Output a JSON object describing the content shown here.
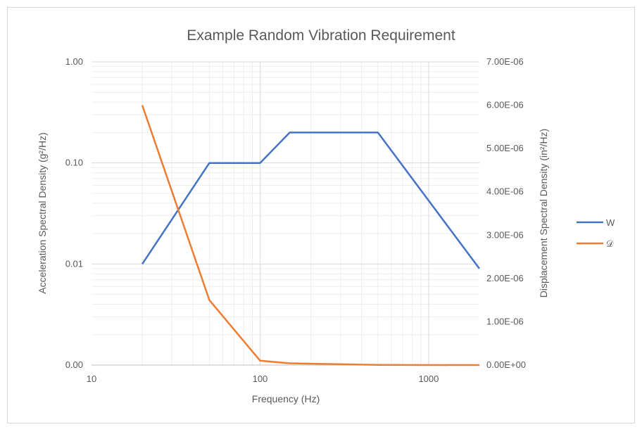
{
  "chart_data": {
    "type": "line",
    "title": "Example Random Vibration Requirement",
    "xlabel": "Frequency (Hz)",
    "ylabel_left": "Acceleration Spectral Density (g²/Hz)",
    "ylabel_right": "Displacement Spectral Density (in²/Hz)",
    "x_scale": "log",
    "xlim": [
      10,
      2000
    ],
    "x_ticks": [
      10,
      100,
      1000
    ],
    "x_tick_labels": [
      "10",
      "100",
      "1000"
    ],
    "y_left_scale": "log",
    "y_left_lim": [
      0.001,
      1
    ],
    "y_left_ticks": [
      0.001,
      0.01,
      0.1,
      1
    ],
    "y_left_tick_labels": [
      "0.00",
      "0.01",
      "0.10",
      "1.00"
    ],
    "y_right_scale": "linear",
    "y_right_lim": [
      0,
      7e-06
    ],
    "y_right_ticks": [
      0,
      1e-06,
      2e-06,
      3e-06,
      4e-06,
      5e-06,
      6e-06,
      7e-06
    ],
    "y_right_tick_labels": [
      "0.00E+00",
      "1.00E-06",
      "2.00E-06",
      "3.00E-06",
      "4.00E-06",
      "5.00E-06",
      "6.00E-06",
      "7.00E-06"
    ],
    "grid": true,
    "legend_position": "right",
    "series": [
      {
        "name": "W",
        "axis": "left",
        "color": "#4472c4",
        "x": [
          20,
          50,
          100,
          150,
          500,
          2000
        ],
        "y": [
          0.01,
          0.1,
          0.1,
          0.2,
          0.2,
          0.009
        ]
      },
      {
        "name": "𝒟",
        "axis": "right",
        "color": "#ed7d31",
        "x": [
          20,
          50,
          100,
          150,
          500,
          2000
        ],
        "y": [
          6e-06,
          1.5e-06,
          1e-07,
          4e-08,
          3e-09,
          1e-10
        ]
      }
    ]
  }
}
